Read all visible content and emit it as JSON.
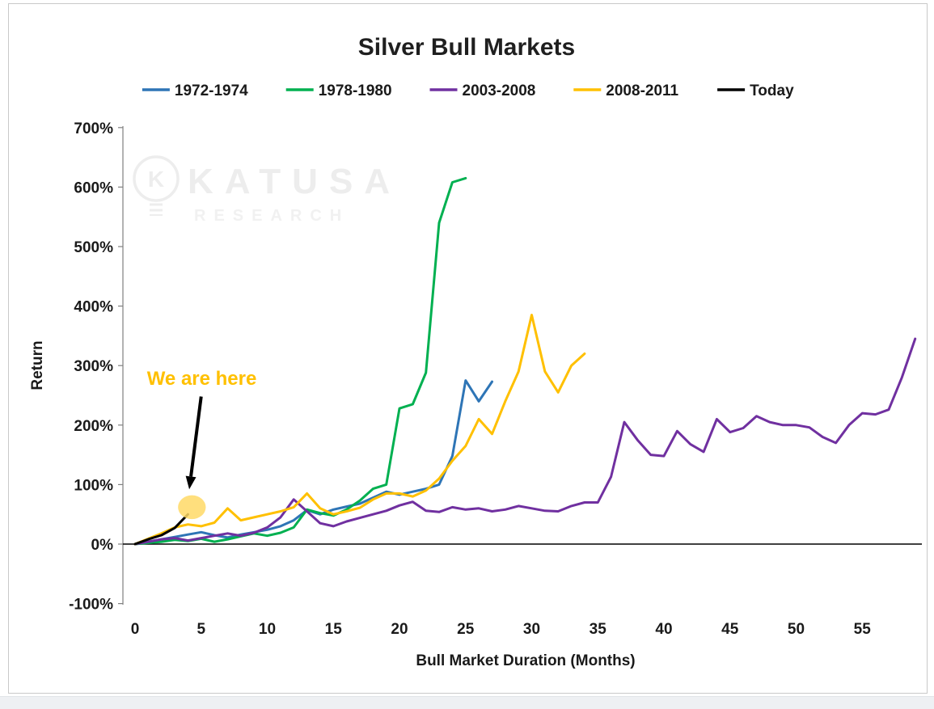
{
  "page": {
    "background": "#ffffff",
    "figure_border": "#c9c9c9",
    "footer_strip_color": "#eef0f3"
  },
  "chart_data": {
    "type": "line",
    "title": "Silver Bull Markets",
    "xlabel": "Bull Market Duration (Months)",
    "ylabel": "Return",
    "xlim": [
      0,
      60
    ],
    "ylim": [
      -100,
      700
    ],
    "x_ticks": [
      0,
      5,
      10,
      15,
      20,
      25,
      30,
      35,
      40,
      45,
      50,
      55
    ],
    "y_ticks": [
      -100,
      0,
      100,
      200,
      300,
      400,
      500,
      600,
      700
    ],
    "y_tick_suffix": "%",
    "grid": false,
    "legend_position": "top",
    "axis_color": "#808080",
    "zero_line_color": "#000000",
    "series": [
      {
        "name": "1972-1974",
        "color": "#2E75B6",
        "x_start": 0,
        "values": [
          0,
          4,
          8,
          12,
          16,
          20,
          15,
          11,
          16,
          20,
          24,
          30,
          40,
          57,
          50,
          58,
          63,
          68,
          78,
          88,
          83,
          88,
          93,
          100,
          148,
          275,
          240,
          273
        ]
      },
      {
        "name": "1978-1980",
        "color": "#00B050",
        "x_start": 0,
        "values": [
          0,
          2,
          4,
          7,
          5,
          9,
          4,
          8,
          13,
          18,
          14,
          19,
          28,
          58,
          52,
          48,
          58,
          73,
          93,
          100,
          228,
          235,
          288,
          540,
          608,
          615
        ]
      },
      {
        "name": "2003-2008",
        "color": "#7030A0",
        "x_start": 0,
        "values": [
          0,
          4,
          8,
          10,
          6,
          10,
          14,
          18,
          14,
          19,
          28,
          45,
          75,
          55,
          35,
          30,
          38,
          44,
          50,
          56,
          65,
          71,
          56,
          54,
          62,
          58,
          60,
          55,
          58,
          64,
          60,
          56,
          55,
          64,
          70,
          70,
          113,
          205,
          175,
          150,
          148,
          190,
          168,
          155,
          210,
          188,
          195,
          215,
          205,
          200,
          200,
          196,
          180,
          170,
          200,
          220,
          218,
          226,
          280,
          345
        ]
      },
      {
        "name": "2008-2011",
        "color": "#FFC000",
        "x_start": 0,
        "values": [
          0,
          9,
          18,
          28,
          33,
          30,
          36,
          60,
          40,
          45,
          50,
          55,
          62,
          85,
          60,
          50,
          55,
          61,
          75,
          85,
          85,
          80,
          90,
          110,
          140,
          165,
          210,
          185,
          240,
          290,
          385,
          290,
          255,
          300,
          320
        ]
      },
      {
        "name": "Today",
        "color": "#000000",
        "x_start": 0,
        "values": [
          0,
          8,
          15,
          27,
          50
        ]
      }
    ],
    "annotation": {
      "text": "We are here",
      "text_color": "#FFC000",
      "text_x": 0.9,
      "text_y": 268,
      "arrow_color": "#000000",
      "arrow_from": [
        5.0,
        248
      ],
      "arrow_to": [
        4.1,
        92
      ],
      "ellipse": {
        "cx": 4.3,
        "cy": 62,
        "rx_months": 1.05,
        "ry_pct": 20,
        "fill": "#FFD966",
        "opacity": 0.85
      }
    },
    "watermark": {
      "brand": "KATUSA",
      "subtitle": "RESEARCH",
      "logo_letter": "K",
      "color": "#ededed",
      "subtitle_color": "#f1f1f1"
    }
  }
}
